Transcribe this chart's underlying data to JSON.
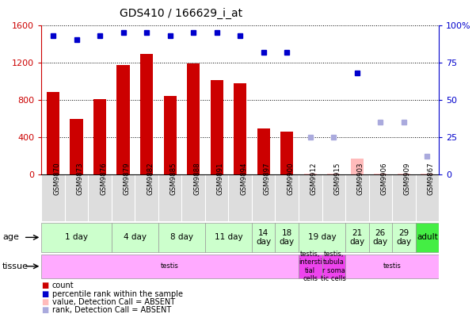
{
  "title": "GDS410 / 166629_i_at",
  "samples": [
    "GSM9870",
    "GSM9873",
    "GSM9876",
    "GSM9879",
    "GSM9882",
    "GSM9885",
    "GSM9888",
    "GSM9891",
    "GSM9894",
    "GSM9897",
    "GSM9900",
    "GSM9912",
    "GSM9915",
    "GSM9903",
    "GSM9906",
    "GSM9909",
    "GSM9867"
  ],
  "bar_values": [
    880,
    590,
    810,
    1170,
    1290,
    840,
    1190,
    1010,
    980,
    490,
    460,
    5,
    5,
    170,
    5,
    5,
    5
  ],
  "bar_absent": [
    false,
    false,
    false,
    false,
    false,
    false,
    false,
    false,
    false,
    false,
    false,
    true,
    true,
    true,
    true,
    true,
    true
  ],
  "percentile_values": [
    93,
    90,
    93,
    95,
    95,
    93,
    95,
    95,
    93,
    82,
    82,
    25,
    25,
    68,
    35,
    35,
    12
  ],
  "percentile_absent": [
    false,
    false,
    false,
    false,
    false,
    false,
    false,
    false,
    false,
    false,
    false,
    true,
    true,
    false,
    true,
    true,
    true
  ],
  "ylim_left": [
    0,
    1600
  ],
  "ylim_right": [
    0,
    100
  ],
  "yticks_left": [
    0,
    400,
    800,
    1200,
    1600
  ],
  "yticks_right": [
    0,
    25,
    50,
    75,
    100
  ],
  "bar_color_present": "#cc0000",
  "bar_color_absent": "#ffbbbb",
  "dot_color_present": "#0000cc",
  "dot_color_absent": "#aaaadd",
  "age_groups": [
    {
      "label": "1 day",
      "samples": [
        "GSM9870",
        "GSM9873",
        "GSM9876"
      ],
      "color": "#ccffcc"
    },
    {
      "label": "4 day",
      "samples": [
        "GSM9879",
        "GSM9882"
      ],
      "color": "#ccffcc"
    },
    {
      "label": "8 day",
      "samples": [
        "GSM9885",
        "GSM9888"
      ],
      "color": "#ccffcc"
    },
    {
      "label": "11 day",
      "samples": [
        "GSM9891",
        "GSM9894"
      ],
      "color": "#ccffcc"
    },
    {
      "label": "14\nday",
      "samples": [
        "GSM9897"
      ],
      "color": "#ccffcc"
    },
    {
      "label": "18\nday",
      "samples": [
        "GSM9900"
      ],
      "color": "#ccffcc"
    },
    {
      "label": "19 day",
      "samples": [
        "GSM9912",
        "GSM9915"
      ],
      "color": "#ccffcc"
    },
    {
      "label": "21\nday",
      "samples": [
        "GSM9903"
      ],
      "color": "#ccffcc"
    },
    {
      "label": "26\nday",
      "samples": [
        "GSM9906"
      ],
      "color": "#ccffcc"
    },
    {
      "label": "29\nday",
      "samples": [
        "GSM9909"
      ],
      "color": "#ccffcc"
    },
    {
      "label": "adult",
      "samples": [
        "GSM9867"
      ],
      "color": "#44ee44"
    }
  ],
  "tissue_groups": [
    {
      "label": "testis",
      "samples": [
        "GSM9870",
        "GSM9873",
        "GSM9876",
        "GSM9879",
        "GSM9882",
        "GSM9885",
        "GSM9888",
        "GSM9891",
        "GSM9894",
        "GSM9897",
        "GSM9900"
      ],
      "color": "#ffaaff"
    },
    {
      "label": "testis,\nintersti\ntial\ncells",
      "samples": [
        "GSM9912"
      ],
      "color": "#ee44ee"
    },
    {
      "label": "testis,\ntubula\nr soma\ntic cells",
      "samples": [
        "GSM9915"
      ],
      "color": "#ee44ee"
    },
    {
      "label": "testis",
      "samples": [
        "GSM9903",
        "GSM9906",
        "GSM9909",
        "GSM9867"
      ],
      "color": "#ffaaff"
    }
  ],
  "legend_items": [
    {
      "label": "count",
      "color": "#cc0000"
    },
    {
      "label": "percentile rank within the sample",
      "color": "#0000cc"
    },
    {
      "label": "value, Detection Call = ABSENT",
      "color": "#ffbbbb"
    },
    {
      "label": "rank, Detection Call = ABSENT",
      "color": "#aaaadd"
    }
  ],
  "ylabel_left_color": "#cc0000",
  "ylabel_right_color": "#0000cc",
  "xticklabel_bg": "#dddddd"
}
